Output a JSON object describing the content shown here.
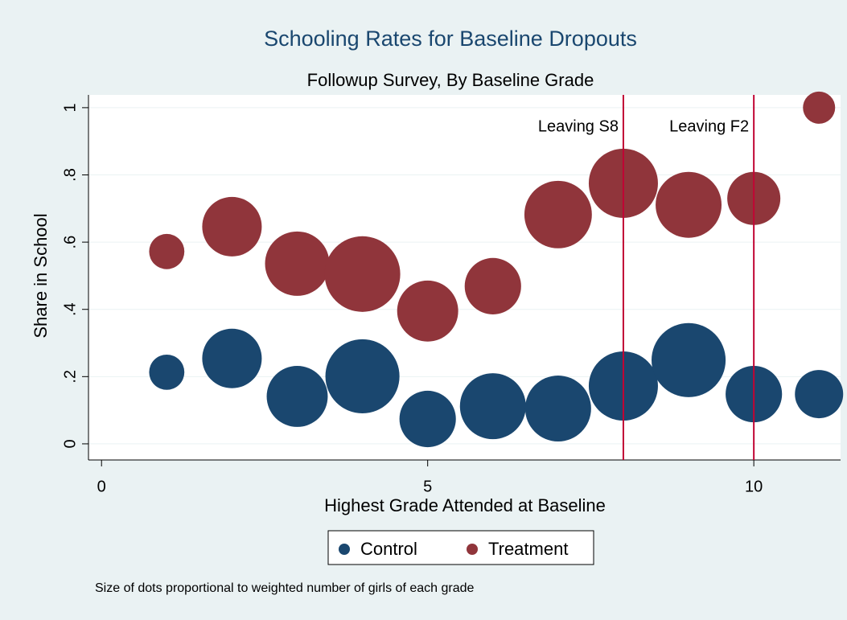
{
  "chart_data": {
    "type": "scatter",
    "title": "Schooling Rates for Baseline Dropouts",
    "subtitle": "Followup Survey, By Baseline Grade",
    "x_label": "Highest Grade Attended at Baseline",
    "y_label": "Share in School",
    "note": "Size of dots proportional to weighted number of girls of each grade",
    "x": [
      1,
      2,
      3,
      4,
      5,
      6,
      7,
      8,
      9,
      10,
      11
    ],
    "series": [
      {
        "name": "Control",
        "color": "#1a476f",
        "values": [
          0.213,
          0.254,
          0.141,
          0.201,
          0.074,
          0.112,
          0.105,
          0.172,
          0.249,
          0.148,
          0.148
        ],
        "sizes": [
          48,
          137,
          144,
          212,
          123,
          168,
          168,
          185,
          212,
          123,
          90
        ]
      },
      {
        "name": "Treatment",
        "color": "#90353b",
        "values": [
          0.572,
          0.646,
          0.536,
          0.505,
          0.395,
          0.469,
          0.682,
          0.775,
          0.711,
          0.73,
          1.0
        ],
        "sizes": [
          48,
          137,
          160,
          221,
          144,
          123,
          176,
          185,
          168,
          109,
          40
        ]
      }
    ],
    "vlines": [
      {
        "x": 8,
        "label": "Leaving S8"
      },
      {
        "x": 10,
        "label": "Leaving F2"
      }
    ],
    "vline_color": "#c10534",
    "xlim": [
      -0.2,
      11.33
    ],
    "ylim": [
      -0.048,
      1.038
    ],
    "xticks": [
      0,
      5,
      10
    ],
    "yticks": [
      0,
      {
        "value": 0.2,
        "label": ".2"
      },
      {
        "value": 0.4,
        "label": ".4"
      },
      {
        "value": 0.6,
        "label": ".6"
      },
      {
        "value": 0.8,
        "label": ".8"
      },
      1
    ],
    "grid": true
  }
}
